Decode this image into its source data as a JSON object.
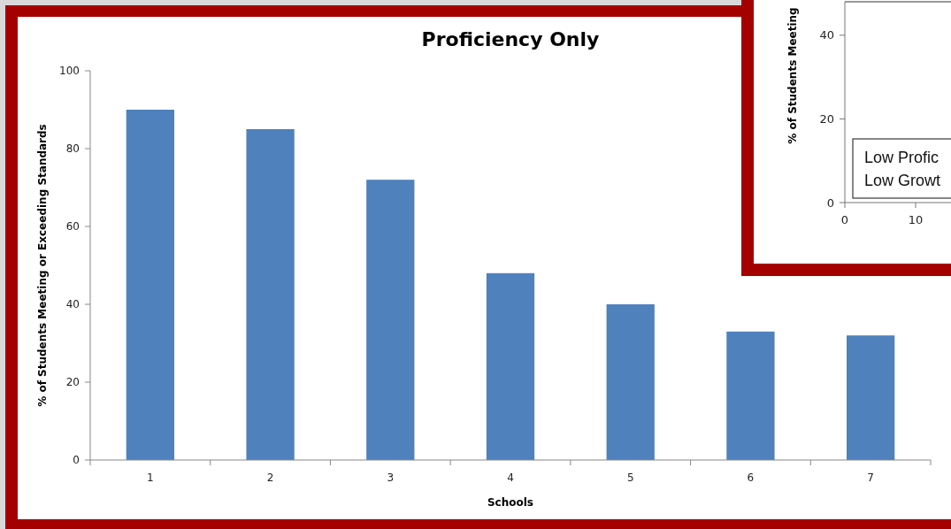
{
  "chart_data": [
    {
      "type": "bar",
      "title": "Proficiency Only",
      "xlabel": "Schools",
      "ylabel": "% of Students Meeting or Exceeding Standards",
      "categories": [
        "1",
        "2",
        "3",
        "4",
        "5",
        "6",
        "7"
      ],
      "values": [
        90,
        85,
        72,
        48,
        40,
        33,
        32
      ],
      "color": "#4f81bd",
      "ylim": [
        0,
        100
      ],
      "yticks": [
        0,
        20,
        40,
        60,
        80,
        100
      ],
      "grid": false,
      "legend": false
    },
    {
      "type": "scatter",
      "ylabel": "% of Students Meeting",
      "xlim": [
        0,
        15
      ],
      "ylim": [
        0,
        48
      ],
      "xticks": [
        0,
        10
      ],
      "yticks": [
        0,
        20,
        40
      ],
      "annotations": [
        "Low Profic",
        "Low Growt"
      ],
      "grid": false,
      "legend": false
    }
  ]
}
